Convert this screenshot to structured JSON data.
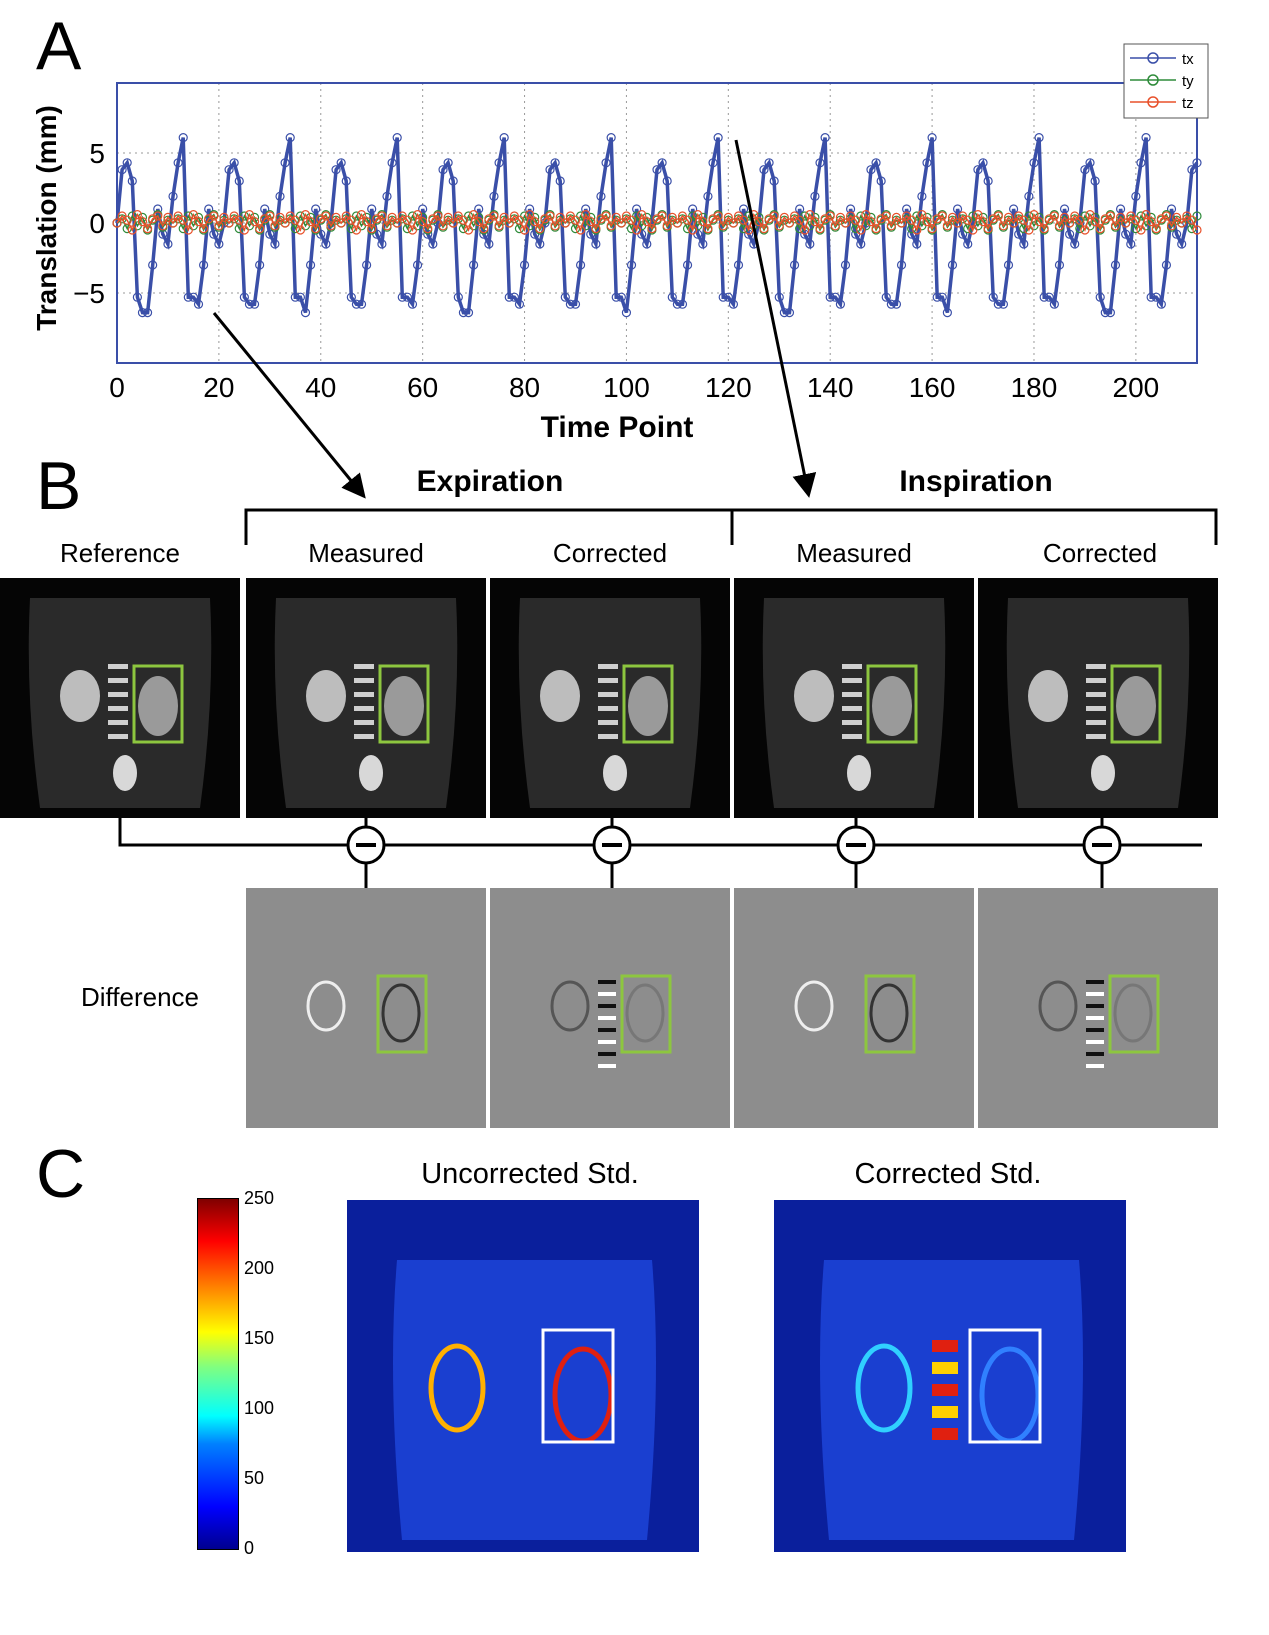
{
  "panels": {
    "a": "A",
    "b": "B",
    "c": "C"
  },
  "chart_data": {
    "type": "line",
    "title": "",
    "xlabel": "Time Point",
    "ylabel": "Translation (mm)",
    "xlim": [
      0,
      212
    ],
    "ylim": [
      -10,
      10
    ],
    "xticks": [
      "0",
      "20",
      "40",
      "60",
      "80",
      "100",
      "120",
      "140",
      "160",
      "180",
      "200"
    ],
    "yticks": [
      "−5",
      "0",
      "5"
    ],
    "legend_position": "top-right",
    "series": [
      {
        "name": "tx",
        "color": "#3a4fa8",
        "pattern_period": 10.5,
        "pattern": [
          0,
          4.0,
          4.6,
          3.0,
          -5.5,
          -5.0,
          -5.3,
          -5.9,
          -2.0,
          1.0,
          -1.0
        ]
      },
      {
        "name": "ty",
        "color": "#2e8b3a",
        "pattern_period": 10.5,
        "pattern": [
          0,
          0.3,
          -0.4,
          0.5,
          -0.2,
          0.4,
          -0.5,
          0.2,
          0.6,
          -0.3,
          0.2
        ]
      },
      {
        "name": "tz",
        "color": "#e8502a",
        "pattern_period": 10.5,
        "pattern": [
          0,
          0.5,
          0.2,
          -0.5,
          0.6,
          0.1,
          -0.4,
          0.3,
          0.5,
          -0.2,
          0.4
        ]
      }
    ],
    "peak_value": 6.1,
    "trough_value": -6.4
  },
  "section_b": {
    "expiration": "Expiration",
    "inspiration": "Inspiration",
    "reference": "Reference",
    "measured_1": "Measured",
    "corrected_1": "Corrected",
    "measured_2": "Measured",
    "corrected_2": "Corrected",
    "difference": "Difference",
    "minus_symbol": "−",
    "roi_color": "#8dc63f"
  },
  "section_c": {
    "uncorrected_title": "Uncorrected Std.",
    "corrected_title": "Corrected Std.",
    "colorbar_ticks": [
      "250",
      "200",
      "150",
      "100",
      "50",
      "0"
    ],
    "colorbar_range": [
      0,
      250
    ]
  }
}
